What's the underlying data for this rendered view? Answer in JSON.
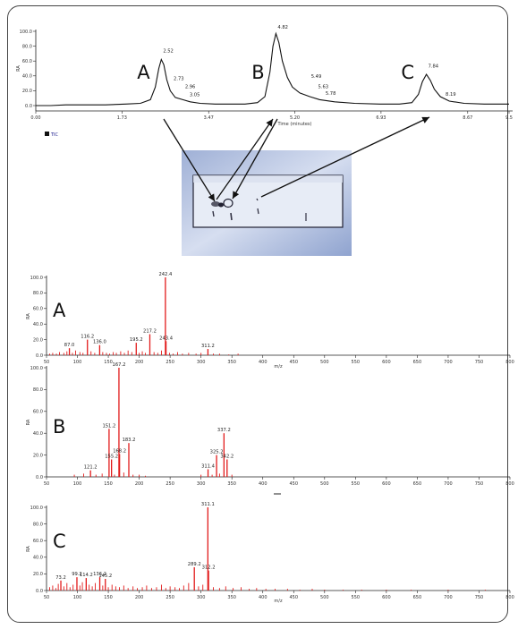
{
  "chart_data": [
    {
      "id": "tic",
      "type": "line",
      "xlabel": "Time (minutes)",
      "ylabel": "RA",
      "ylim": [
        0,
        100
      ],
      "xlim": [
        0,
        9.5
      ],
      "x_ticks": [
        "0.00",
        "1.73",
        "3.47",
        "5.20",
        "6.93",
        "8.67",
        "9.5"
      ],
      "y_ticks": [
        "100.0",
        "80.0",
        "60.0",
        "40.0",
        "20.0",
        "0.0"
      ],
      "legend": "TIC",
      "legend_color": "#1a1a8c",
      "line_color": "#111111",
      "peak_labels": [
        {
          "text": "A",
          "x": 2.5
        },
        {
          "text": "B",
          "x": 4.8
        },
        {
          "text": "C",
          "x": 7.8
        }
      ],
      "peak_annotations": [
        {
          "text": "2.52",
          "x": 2.52,
          "y": 69
        },
        {
          "text": "2.73",
          "x": 2.73,
          "y": 32
        },
        {
          "text": "2.96",
          "x": 2.96,
          "y": 21
        },
        {
          "text": "3.05",
          "x": 3.05,
          "y": 10
        },
        {
          "text": "4.82",
          "x": 4.82,
          "y": 101
        },
        {
          "text": "5.49",
          "x": 5.49,
          "y": 35
        },
        {
          "text": "5.63",
          "x": 5.63,
          "y": 21
        },
        {
          "text": "5.78",
          "x": 5.78,
          "y": 12
        },
        {
          "text": "7.84",
          "x": 7.84,
          "y": 49
        },
        {
          "text": "8.19",
          "x": 8.19,
          "y": 11
        }
      ],
      "trace": [
        [
          0.0,
          0
        ],
        [
          0.3,
          0
        ],
        [
          0.6,
          1
        ],
        [
          1.0,
          1
        ],
        [
          1.4,
          1
        ],
        [
          1.8,
          2
        ],
        [
          2.1,
          3
        ],
        [
          2.3,
          8
        ],
        [
          2.4,
          25
        ],
        [
          2.47,
          50
        ],
        [
          2.52,
          62
        ],
        [
          2.57,
          55
        ],
        [
          2.63,
          35
        ],
        [
          2.7,
          20
        ],
        [
          2.8,
          11
        ],
        [
          2.95,
          8
        ],
        [
          3.1,
          5
        ],
        [
          3.3,
          3
        ],
        [
          3.6,
          2
        ],
        [
          3.9,
          2
        ],
        [
          4.2,
          2
        ],
        [
          4.45,
          4
        ],
        [
          4.6,
          12
        ],
        [
          4.7,
          45
        ],
        [
          4.76,
          80
        ],
        [
          4.82,
          97
        ],
        [
          4.88,
          85
        ],
        [
          4.95,
          60
        ],
        [
          5.05,
          38
        ],
        [
          5.15,
          25
        ],
        [
          5.3,
          17
        ],
        [
          5.5,
          12
        ],
        [
          5.7,
          8
        ],
        [
          6.0,
          5
        ],
        [
          6.4,
          3
        ],
        [
          6.9,
          2
        ],
        [
          7.3,
          2
        ],
        [
          7.55,
          4
        ],
        [
          7.68,
          15
        ],
        [
          7.76,
          32
        ],
        [
          7.84,
          42
        ],
        [
          7.92,
          34
        ],
        [
          8.0,
          22
        ],
        [
          8.12,
          12
        ],
        [
          8.3,
          6
        ],
        [
          8.6,
          3
        ],
        [
          9.0,
          2
        ],
        [
          9.5,
          2
        ]
      ]
    },
    {
      "id": "ms-a",
      "type": "bar",
      "panel_label": "A",
      "xlabel": "m/z",
      "ylabel": "RA",
      "ylim": [
        0,
        100
      ],
      "xlim": [
        50,
        800
      ],
      "x_ticks": [
        "50",
        "100",
        "150",
        "200",
        "250",
        "300",
        "350",
        "400",
        "450",
        "500",
        "550",
        "600",
        "650",
        "700",
        "750",
        "800"
      ],
      "y_ticks": [
        "100.0",
        "80.0",
        "60.0",
        "40.0",
        "20.0",
        "0.0"
      ],
      "bar_color": "#e21b1b",
      "peaks": [
        {
          "x": 87.0,
          "y": 9,
          "label": "87.0"
        },
        {
          "x": 116.2,
          "y": 20,
          "label": "116.2"
        },
        {
          "x": 136.0,
          "y": 13,
          "label": "136.0"
        },
        {
          "x": 195.2,
          "y": 16,
          "label": "195.2"
        },
        {
          "x": 217.2,
          "y": 27,
          "label": "217.2"
        },
        {
          "x": 242.4,
          "y": 100,
          "label": "242.4"
        },
        {
          "x": 243.4,
          "y": 18,
          "label": "243.4"
        },
        {
          "x": 311.2,
          "y": 8,
          "label": "311.2"
        }
      ],
      "noise": [
        [
          55,
          2
        ],
        [
          60,
          3
        ],
        [
          66,
          2
        ],
        [
          71,
          4
        ],
        [
          78,
          3
        ],
        [
          83,
          5
        ],
        [
          92,
          3
        ],
        [
          97,
          6
        ],
        [
          104,
          4
        ],
        [
          109,
          3
        ],
        [
          122,
          5
        ],
        [
          128,
          3
        ],
        [
          141,
          4
        ],
        [
          147,
          3
        ],
        [
          152,
          2
        ],
        [
          158,
          4
        ],
        [
          163,
          3
        ],
        [
          170,
          5
        ],
        [
          176,
          3
        ],
        [
          182,
          6
        ],
        [
          188,
          4
        ],
        [
          200,
          3
        ],
        [
          205,
          5
        ],
        [
          210,
          3
        ],
        [
          224,
          4
        ],
        [
          230,
          3
        ],
        [
          236,
          6
        ],
        [
          249,
          3
        ],
        [
          255,
          2
        ],
        [
          262,
          4
        ],
        [
          270,
          2
        ],
        [
          280,
          3
        ],
        [
          292,
          2
        ],
        [
          300,
          3
        ],
        [
          320,
          2
        ],
        [
          330,
          2
        ],
        [
          345,
          1
        ],
        [
          360,
          2
        ]
      ]
    },
    {
      "id": "ms-b",
      "type": "bar",
      "panel_label": "B",
      "xlabel": "",
      "ylabel": "RA",
      "ylim": [
        0,
        100
      ],
      "xlim": [
        50,
        800
      ],
      "x_ticks": [
        "50",
        "100",
        "150",
        "200",
        "250",
        "300",
        "350",
        "400",
        "450",
        "500",
        "550",
        "600",
        "650",
        "700",
        "750",
        "800"
      ],
      "y_ticks": [
        "100.0",
        "80.0",
        "60.0",
        "40.0",
        "20.0",
        "0.0"
      ],
      "bar_color": "#e21b1b",
      "peaks": [
        {
          "x": 121.2,
          "y": 6,
          "label": "121.2"
        },
        {
          "x": 151.2,
          "y": 44,
          "label": "151.2"
        },
        {
          "x": 155.2,
          "y": 16,
          "label": "155.2"
        },
        {
          "x": 167.2,
          "y": 100,
          "label": "167.2"
        },
        {
          "x": 168.2,
          "y": 21,
          "label": "168.2"
        },
        {
          "x": 183.2,
          "y": 31,
          "label": "183.2"
        },
        {
          "x": 311.4,
          "y": 7,
          "label": "311.4"
        },
        {
          "x": 325.2,
          "y": 20,
          "label": "325.2"
        },
        {
          "x": 337.2,
          "y": 40,
          "label": "337.2"
        },
        {
          "x": 342.2,
          "y": 16,
          "label": "342.2"
        }
      ],
      "noise": [
        [
          95,
          2
        ],
        [
          110,
          3
        ],
        [
          130,
          2
        ],
        [
          140,
          3
        ],
        [
          160,
          2
        ],
        [
          175,
          4
        ],
        [
          190,
          2
        ],
        [
          200,
          2
        ],
        [
          210,
          1
        ],
        [
          300,
          2
        ],
        [
          318,
          2
        ],
        [
          330,
          3
        ],
        [
          350,
          2
        ]
      ]
    },
    {
      "id": "ms-c",
      "type": "bar",
      "panel_label": "C",
      "xlabel": "m/z",
      "ylabel": "RA",
      "ylim": [
        0,
        100
      ],
      "xlim": [
        50,
        800
      ],
      "x_ticks": [
        "50",
        "100",
        "150",
        "200",
        "250",
        "300",
        "350",
        "400",
        "450",
        "500",
        "550",
        "600",
        "650",
        "700",
        "750",
        "800"
      ],
      "y_ticks": [
        "100.0",
        "80.0",
        "60.0",
        "40.0",
        "20.0",
        "0.0"
      ],
      "bar_color": "#e21b1b",
      "peaks": [
        {
          "x": 73.2,
          "y": 12,
          "label": "73.2"
        },
        {
          "x": 99.2,
          "y": 16,
          "label": "99.2"
        },
        {
          "x": 114.2,
          "y": 15,
          "label": "114.2"
        },
        {
          "x": 136.2,
          "y": 16,
          "label": "136.2"
        },
        {
          "x": 145.2,
          "y": 14,
          "label": "145.2"
        },
        {
          "x": 289.2,
          "y": 28,
          "label": "289.2"
        },
        {
          "x": 311.1,
          "y": 100,
          "label": "311.1"
        },
        {
          "x": 312.2,
          "y": 24,
          "label": "312.2"
        }
      ],
      "noise": [
        [
          55,
          4
        ],
        [
          60,
          6
        ],
        [
          65,
          3
        ],
        [
          69,
          8
        ],
        [
          78,
          5
        ],
        [
          83,
          9
        ],
        [
          88,
          4
        ],
        [
          93,
          7
        ],
        [
          104,
          6
        ],
        [
          108,
          10
        ],
        [
          119,
          7
        ],
        [
          124,
          5
        ],
        [
          129,
          9
        ],
        [
          141,
          6
        ],
        [
          150,
          4
        ],
        [
          156,
          7
        ],
        [
          162,
          5
        ],
        [
          168,
          4
        ],
        [
          175,
          6
        ],
        [
          182,
          3
        ],
        [
          190,
          5
        ],
        [
          197,
          3
        ],
        [
          205,
          4
        ],
        [
          212,
          6
        ],
        [
          220,
          3
        ],
        [
          228,
          4
        ],
        [
          236,
          7
        ],
        [
          243,
          3
        ],
        [
          250,
          5
        ],
        [
          258,
          4
        ],
        [
          265,
          3
        ],
        [
          272,
          6
        ],
        [
          280,
          9
        ],
        [
          296,
          5
        ],
        [
          303,
          7
        ],
        [
          320,
          4
        ],
        [
          330,
          3
        ],
        [
          340,
          5
        ],
        [
          352,
          3
        ],
        [
          365,
          4
        ],
        [
          378,
          2
        ],
        [
          390,
          3
        ],
        [
          405,
          2
        ],
        [
          420,
          2
        ],
        [
          440,
          2
        ],
        [
          460,
          1
        ],
        [
          480,
          2
        ],
        [
          500,
          1
        ],
        [
          530,
          1
        ],
        [
          560,
          1
        ],
        [
          600,
          1
        ],
        [
          640,
          1
        ],
        [
          700,
          1
        ],
        [
          760,
          1
        ]
      ]
    }
  ]
}
